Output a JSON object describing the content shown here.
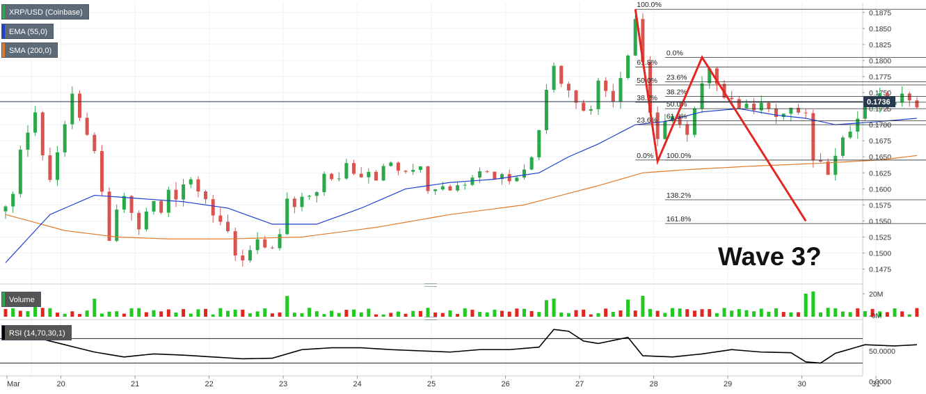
{
  "legend": {
    "symbol": "XRP/USD (Coinbase)",
    "ema": "EMA (55,0)",
    "sma": "SMA (200,0)",
    "volume": "Volume",
    "rsi": "RSI (14,70,30,1)"
  },
  "colors": {
    "up": "#2aa84a",
    "down": "#d9534f",
    "ema": "#1f3fd1",
    "sma": "#e07b2a",
    "wave": "#e32620",
    "price_tag": "#27394d"
  },
  "annotation": "Wave 3?",
  "chart_data": [
    {
      "type": "candlestick",
      "title": "XRP/USD (Coinbase)",
      "x_ticks": [
        {
          "label": "Mar",
          "pos": 0
        },
        {
          "label": "20",
          "pos": 4
        },
        {
          "label": "21",
          "pos": 14
        },
        {
          "label": "22",
          "pos": 24
        },
        {
          "label": "23",
          "pos": 34
        },
        {
          "label": "24",
          "pos": 44
        },
        {
          "label": "25",
          "pos": 54
        },
        {
          "label": "26",
          "pos": 64
        },
        {
          "label": "27",
          "pos": 74
        },
        {
          "label": "28",
          "pos": 84
        },
        {
          "label": "29",
          "pos": 94
        },
        {
          "label": "30",
          "pos": 104
        },
        {
          "label": "31",
          "pos": 114
        }
      ],
      "y_ticks": [
        "0.1875",
        "0.1850",
        "0.1825",
        "0.1800",
        "0.1775",
        "0.1750",
        "0.1725",
        "0.1700",
        "0.1675",
        "0.1650",
        "0.1625",
        "0.1600",
        "0.1575",
        "0.1550",
        "0.1525",
        "0.1500",
        "0.1475"
      ],
      "ylim": [
        0.1455,
        0.189
      ],
      "last_price": "0.1736",
      "close_path": [
        [
          0,
          0.1565
        ],
        [
          1,
          0.16
        ],
        [
          2,
          0.166
        ],
        [
          3,
          0.169
        ],
        [
          4,
          0.172
        ],
        [
          5,
          0.165
        ],
        [
          6,
          0.162
        ],
        [
          7,
          0.166
        ],
        [
          8,
          0.17
        ],
        [
          9,
          0.174
        ],
        [
          10,
          0.1705
        ],
        [
          11,
          0.169
        ],
        [
          12,
          0.165
        ],
        [
          13,
          0.159
        ],
        [
          14,
          0.152
        ],
        [
          15,
          0.156
        ],
        [
          16,
          0.159
        ],
        [
          17,
          0.156
        ],
        [
          18,
          0.154
        ],
        [
          19,
          0.156
        ],
        [
          20,
          0.158
        ],
        [
          21,
          0.156
        ],
        [
          22,
          0.16
        ],
        [
          23,
          0.159
        ],
        [
          24,
          0.161
        ],
        [
          25,
          0.1615
        ],
        [
          26,
          0.1605
        ],
        [
          27,
          0.159
        ],
        [
          28,
          0.156
        ],
        [
          29,
          0.154
        ],
        [
          30,
          0.153
        ],
        [
          31,
          0.15
        ],
        [
          32,
          0.149
        ],
        [
          33,
          0.151
        ],
        [
          34,
          0.152
        ],
        [
          35,
          0.15
        ],
        [
          36,
          0.15
        ],
        [
          37,
          0.153
        ],
        [
          38,
          0.158
        ],
        [
          39,
          0.157
        ],
        [
          40,
          0.158
        ],
        [
          41,
          0.159
        ],
        [
          42,
          0.16
        ],
        [
          43,
          0.162
        ],
        [
          44,
          0.161
        ],
        [
          45,
          0.162
        ],
        [
          46,
          0.164
        ],
        [
          47,
          0.163
        ],
        [
          48,
          0.1625
        ],
        [
          49,
          0.163
        ],
        [
          50,
          0.162
        ],
        [
          51,
          0.163
        ],
        [
          52,
          0.164
        ],
        [
          53,
          0.163
        ],
        [
          54,
          0.162
        ],
        [
          55,
          0.163
        ],
        [
          56,
          0.164
        ],
        [
          57,
          0.16
        ],
        [
          58,
          0.1605
        ],
        [
          59,
          0.161
        ],
        [
          60,
          0.1605
        ],
        [
          61,
          0.16
        ],
        [
          62,
          0.1615
        ],
        [
          63,
          0.1625
        ],
        [
          64,
          0.1635
        ],
        [
          65,
          0.1625
        ],
        [
          66,
          0.162
        ],
        [
          67,
          0.1625
        ],
        [
          68,
          0.1615
        ],
        [
          69,
          0.162
        ],
        [
          70,
          0.163
        ],
        [
          71,
          0.1655
        ],
        [
          72,
          0.17
        ],
        [
          73,
          0.176
        ],
        [
          74,
          0.179
        ],
        [
          75,
          0.177
        ],
        [
          76,
          0.175
        ],
        [
          77,
          0.174
        ],
        [
          78,
          0.173
        ],
        [
          79,
          0.172
        ],
        [
          80,
          0.177
        ],
        [
          81,
          0.176
        ],
        [
          82,
          0.174
        ],
        [
          83,
          0.178
        ],
        [
          84,
          0.181
        ],
        [
          85,
          0.1865
        ],
        [
          86,
          0.18
        ],
        [
          87,
          0.172
        ],
        [
          88,
          0.167
        ],
        [
          89,
          0.17
        ],
        [
          90,
          0.172
        ],
        [
          91,
          0.17
        ],
        [
          92,
          0.168
        ],
        [
          93,
          0.172
        ],
        [
          94,
          0.176
        ],
        [
          95,
          0.178
        ],
        [
          96,
          0.177
        ],
        [
          97,
          0.175
        ],
        [
          98,
          0.174
        ],
        [
          99,
          0.173
        ],
        [
          100,
          0.1725
        ],
        [
          101,
          0.173
        ],
        [
          102,
          0.174
        ],
        [
          103,
          0.1725
        ],
        [
          104,
          0.1705
        ],
        [
          105,
          0.172
        ],
        [
          106,
          0.1725
        ],
        [
          107,
          0.1715
        ],
        [
          108,
          0.171
        ],
        [
          109,
          0.165
        ],
        [
          110,
          0.164
        ],
        [
          111,
          0.163
        ],
        [
          112,
          0.166
        ],
        [
          113,
          0.168
        ],
        [
          114,
          0.169
        ],
        [
          115,
          0.171
        ],
        [
          116,
          0.172
        ],
        [
          117,
          0.173
        ],
        [
          118,
          0.174
        ],
        [
          119,
          0.1735
        ],
        [
          120,
          0.173
        ],
        [
          121,
          0.174
        ],
        [
          122,
          0.1745
        ],
        [
          123,
          0.1736
        ]
      ],
      "ema_path": [
        [
          0,
          0.1485
        ],
        [
          6,
          0.156
        ],
        [
          12,
          0.159
        ],
        [
          18,
          0.1585
        ],
        [
          24,
          0.158
        ],
        [
          30,
          0.157
        ],
        [
          36,
          0.1545
        ],
        [
          42,
          0.1545
        ],
        [
          48,
          0.157
        ],
        [
          54,
          0.16
        ],
        [
          60,
          0.161
        ],
        [
          66,
          0.1615
        ],
        [
          72,
          0.1625
        ],
        [
          76,
          0.165
        ],
        [
          80,
          0.167
        ],
        [
          85,
          0.17
        ],
        [
          89,
          0.1705
        ],
        [
          94,
          0.172
        ],
        [
          99,
          0.1725
        ],
        [
          104,
          0.1715
        ],
        [
          108,
          0.171
        ],
        [
          112,
          0.17
        ],
        [
          118,
          0.1705
        ],
        [
          123,
          0.171
        ]
      ],
      "sma_path": [
        [
          0,
          0.156
        ],
        [
          8,
          0.1535
        ],
        [
          15,
          0.1525
        ],
        [
          22,
          0.1522
        ],
        [
          30,
          0.1522
        ],
        [
          40,
          0.1525
        ],
        [
          50,
          0.154
        ],
        [
          60,
          0.156
        ],
        [
          70,
          0.1575
        ],
        [
          80,
          0.1605
        ],
        [
          86,
          0.1625
        ],
        [
          92,
          0.163
        ],
        [
          100,
          0.1635
        ],
        [
          110,
          0.164
        ],
        [
          118,
          0.1645
        ],
        [
          123,
          0.1652
        ]
      ],
      "wave_path": [
        [
          85,
          0.188
        ],
        [
          88,
          0.1643
        ],
        [
          94,
          0.1805
        ],
        [
          108,
          0.155
        ]
      ],
      "fib_sets": [
        {
          "x_start": 85,
          "x_end": 123,
          "levels": [
            [
              "100.0%",
              0.188
            ],
            [
              "61.8%",
              0.179
            ],
            [
              "50.0%",
              0.1762
            ],
            [
              "38.2%",
              0.1735
            ],
            [
              "23.6%",
              0.17
            ],
            [
              "0.0%",
              0.1645
            ]
          ]
        },
        {
          "x_start": 89,
          "x_end": 123,
          "levels": [
            [
              "0.0%",
              0.1805
            ],
            [
              "23.6%",
              0.1767
            ],
            [
              "38.2%",
              0.1744
            ],
            [
              "50.0%",
              0.1725
            ],
            [
              "61.8%",
              0.1706
            ],
            [
              "100.0%",
              0.1645
            ],
            [
              "138.2%",
              0.1583
            ],
            [
              "161.8%",
              0.1546
            ]
          ]
        }
      ]
    },
    {
      "type": "bar",
      "title": "Volume",
      "y_ticks": [
        "20M",
        "-0M"
      ]
    },
    {
      "type": "line",
      "title": "RSI (14,70,30,1)",
      "y_ticks": [
        "50.0000",
        "0.0000"
      ],
      "levels": [
        70,
        30
      ],
      "ylim": [
        0,
        100
      ],
      "values_path": [
        [
          0,
          72
        ],
        [
          4,
          72
        ],
        [
          8,
          60
        ],
        [
          12,
          48
        ],
        [
          16,
          40
        ],
        [
          20,
          45
        ],
        [
          24,
          43
        ],
        [
          28,
          40
        ],
        [
          32,
          37
        ],
        [
          36,
          38
        ],
        [
          40,
          52
        ],
        [
          44,
          55
        ],
        [
          48,
          55
        ],
        [
          52,
          52
        ],
        [
          56,
          50
        ],
        [
          60,
          48
        ],
        [
          64,
          52
        ],
        [
          68,
          52
        ],
        [
          72,
          56
        ],
        [
          74,
          85
        ],
        [
          76,
          82
        ],
        [
          78,
          66
        ],
        [
          80,
          62
        ],
        [
          84,
          72
        ],
        [
          86,
          42
        ],
        [
          90,
          40
        ],
        [
          94,
          45
        ],
        [
          98,
          52
        ],
        [
          102,
          48
        ],
        [
          106,
          47
        ],
        [
          108,
          32
        ],
        [
          110,
          30
        ],
        [
          112,
          46
        ],
        [
          116,
          60
        ],
        [
          120,
          58
        ],
        [
          123,
          60
        ]
      ]
    }
  ]
}
